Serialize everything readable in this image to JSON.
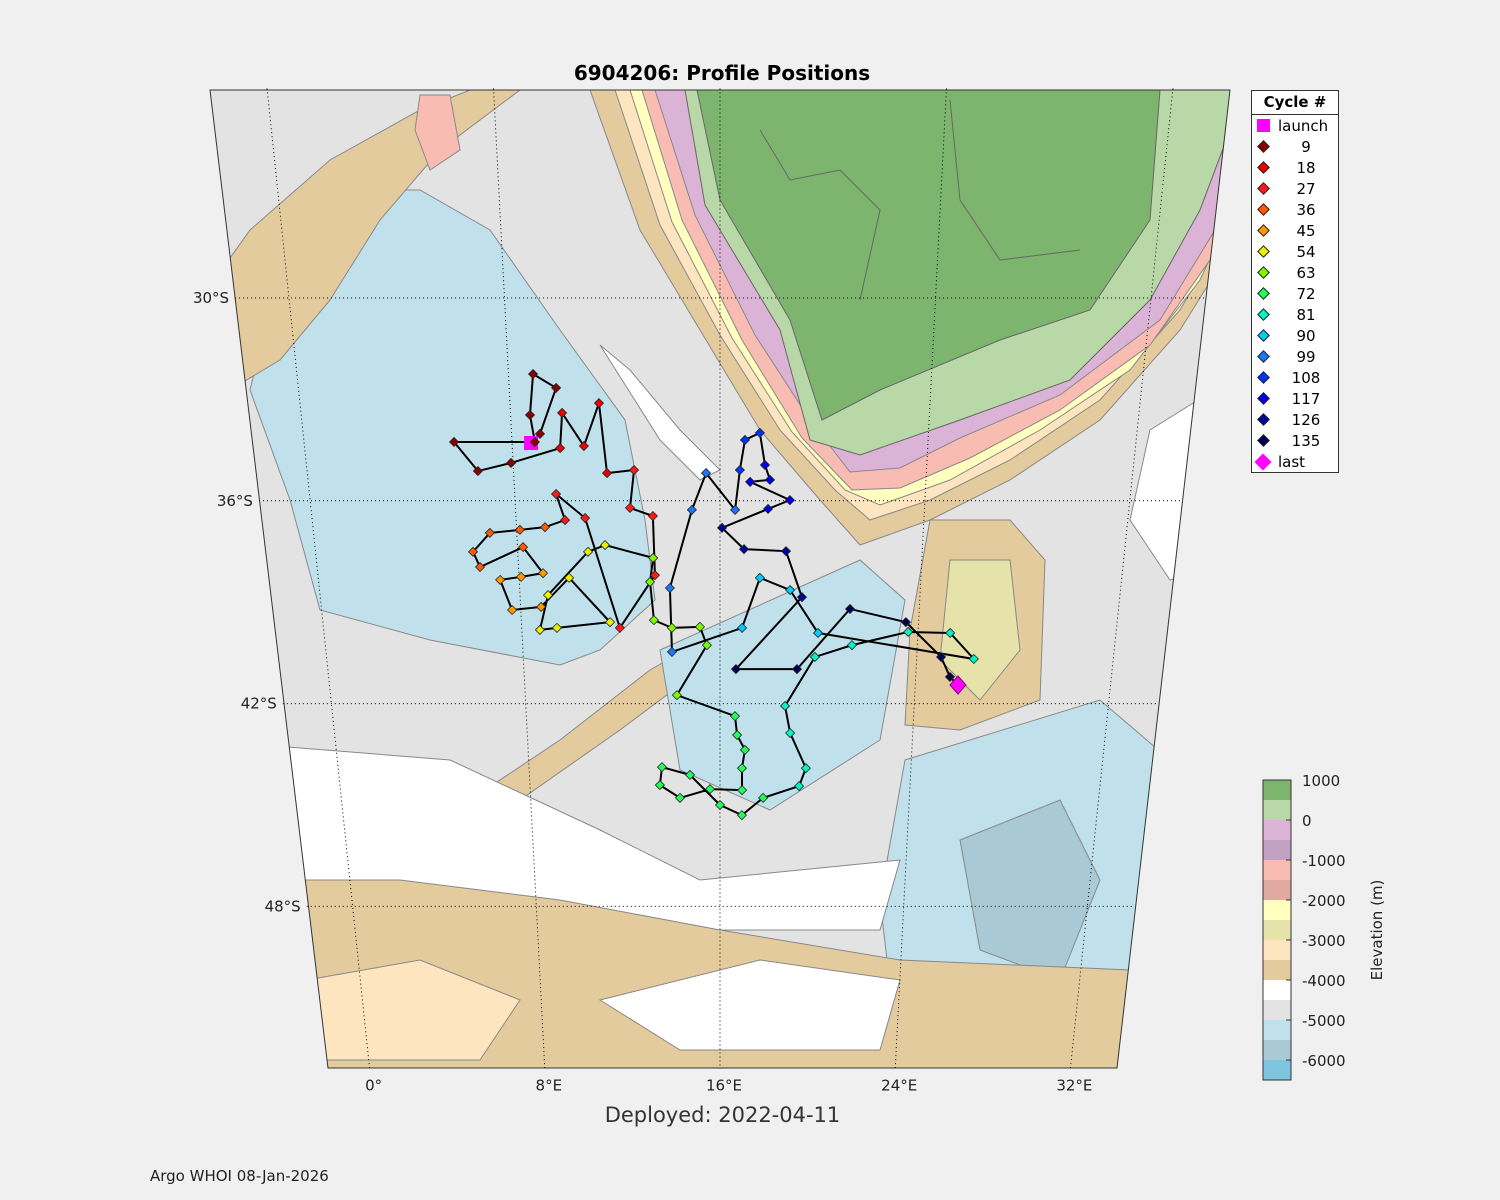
{
  "chart_data": {
    "type": "scatter",
    "title": "6904206: Profile Positions",
    "xlabel": "Deployed: 2022-04-11",
    "footer": "Argo WHOI 08-Jan-2026",
    "lon_range": [
      -2,
      34
    ],
    "lat_range": [
      -23.8,
      -52.8
    ],
    "lon_ticks": [
      {
        "value": 0,
        "label": "0°"
      },
      {
        "value": 8,
        "label": "8°E"
      },
      {
        "value": 16,
        "label": "16°E"
      },
      {
        "value": 24,
        "label": "24°E"
      },
      {
        "value": 32,
        "label": "32°E"
      }
    ],
    "lat_ticks": [
      {
        "value": -30,
        "label": "30°S"
      },
      {
        "value": -36,
        "label": "36°S"
      },
      {
        "value": -42,
        "label": "42°S"
      },
      {
        "value": -48,
        "label": "48°S"
      }
    ],
    "legend": {
      "title": "Cycle #",
      "entries": [
        {
          "label": "launch",
          "color": "#ff00ff",
          "marker": "square"
        },
        {
          "label": "9",
          "color": "#8b0000",
          "marker": "dot"
        },
        {
          "label": "18",
          "color": "#ee0000",
          "marker": "dot"
        },
        {
          "label": "27",
          "color": "#ff1a1a",
          "marker": "dot"
        },
        {
          "label": "36",
          "color": "#ff5a00",
          "marker": "dot"
        },
        {
          "label": "45",
          "color": "#ff9900",
          "marker": "dot"
        },
        {
          "label": "54",
          "color": "#e6f000",
          "marker": "dot"
        },
        {
          "label": "63",
          "color": "#7cfc00",
          "marker": "dot"
        },
        {
          "label": "72",
          "color": "#22ff55",
          "marker": "dot"
        },
        {
          "label": "81",
          "color": "#00f5c0",
          "marker": "dot"
        },
        {
          "label": "90",
          "color": "#00ccff",
          "marker": "dot"
        },
        {
          "label": "99",
          "color": "#1a75ff",
          "marker": "dot"
        },
        {
          "label": "108",
          "color": "#0033ff",
          "marker": "dot"
        },
        {
          "label": "117",
          "color": "#0000ee",
          "marker": "dot"
        },
        {
          "label": "126",
          "color": "#00009a",
          "marker": "dot"
        },
        {
          "label": "135",
          "color": "#000050",
          "marker": "dot"
        },
        {
          "label": "last",
          "color": "#ff00ff",
          "marker": "diamond"
        }
      ]
    },
    "colorbar": {
      "label": "Elevation (m)",
      "ticks": [
        "1000",
        "0",
        "-1000",
        "-2000",
        "-3000",
        "-4000",
        "-5000",
        "-6000"
      ],
      "range": [
        1000,
        -6500
      ],
      "band_colors": [
        "#7db56f",
        "#b9d8a7",
        "#dbb3d7",
        "#c3a1c2",
        "#f9bcb3",
        "#e1a9a0",
        "#ffffc0",
        "#e5e3aa",
        "#fde5c0",
        "#e3cb9d",
        "#ffffff",
        "#e3e3e3",
        "#c0e1ec",
        "#a9c9d5",
        "#80c5e0"
      ]
    },
    "track": [
      [
        8.73,
        -34.29,
        0
      ],
      [
        9.09,
        -34.02,
        1
      ],
      [
        9.78,
        -32.66,
        1
      ],
      [
        8.93,
        -32.25,
        1
      ],
      [
        8.74,
        -33.46,
        1
      ],
      [
        8.88,
        -34.26,
        1
      ],
      [
        5.77,
        -34.26,
        1
      ],
      [
        6.62,
        -35.12,
        1
      ],
      [
        7.92,
        -34.88,
        1
      ],
      [
        9.84,
        -34.44,
        2
      ],
      [
        9.97,
        -33.4,
        2
      ],
      [
        10.76,
        -34.38,
        2
      ],
      [
        11.39,
        -33.11,
        2
      ],
      [
        11.62,
        -35.18,
        2
      ],
      [
        12.67,
        -35.09,
        3
      ],
      [
        12.48,
        -36.21,
        3
      ],
      [
        13.37,
        -36.45,
        3
      ],
      [
        13.41,
        -38.2,
        3
      ],
      [
        11.96,
        -39.76,
        3
      ],
      [
        10.71,
        -36.51,
        3
      ],
      [
        9.61,
        -35.8,
        3
      ],
      [
        9.92,
        -36.57,
        3
      ],
      [
        9.12,
        -36.78,
        4
      ],
      [
        8.13,
        -36.86,
        4
      ],
      [
        6.94,
        -36.95,
        4
      ],
      [
        6.23,
        -37.51,
        4
      ],
      [
        6.47,
        -37.96,
        4
      ],
      [
        8.22,
        -37.37,
        4
      ],
      [
        8.96,
        -38.14,
        5
      ],
      [
        8.08,
        -38.25,
        5
      ],
      [
        7.24,
        -38.34,
        5
      ],
      [
        7.65,
        -39.23,
        5
      ],
      [
        8.82,
        -39.14,
        5
      ],
      [
        9.99,
        -38.28,
        6
      ],
      [
        11.57,
        -39.59,
        6
      ],
      [
        9.42,
        -39.76,
        6
      ],
      [
        8.73,
        -39.82,
        6
      ],
      [
        9.12,
        -38.79,
        6
      ],
      [
        10.78,
        -37.51,
        6
      ],
      [
        11.46,
        -37.31,
        6
      ],
      [
        13.35,
        -37.69,
        7
      ],
      [
        13.21,
        -38.4,
        7
      ],
      [
        13.34,
        -39.53,
        7
      ],
      [
        14.06,
        -39.76,
        7
      ],
      [
        15.19,
        -39.73,
        7
      ],
      [
        15.47,
        -40.27,
        7
      ],
      [
        14.23,
        -41.75,
        7
      ],
      [
        16.62,
        -42.37,
        8
      ],
      [
        16.71,
        -42.93,
        8
      ],
      [
        17.04,
        -43.37,
        8
      ],
      [
        16.92,
        -43.91,
        8
      ],
      [
        16.93,
        -44.56,
        8
      ],
      [
        15.58,
        -44.53,
        8
      ],
      [
        14.31,
        -44.79,
        8
      ],
      [
        13.47,
        -44.41,
        8
      ],
      [
        13.57,
        -43.88,
        8
      ],
      [
        14.74,
        -44.11,
        8
      ],
      [
        16.0,
        -45.0,
        8
      ],
      [
        16.93,
        -45.3,
        8
      ],
      [
        17.82,
        -44.79,
        8
      ],
      [
        19.33,
        -44.44,
        9
      ],
      [
        19.6,
        -43.91,
        9
      ],
      [
        18.91,
        -42.87,
        9
      ],
      [
        18.68,
        -42.07,
        9
      ],
      [
        19.86,
        -40.62,
        9
      ],
      [
        21.35,
        -40.27,
        9
      ],
      [
        23.6,
        -39.88,
        9
      ],
      [
        25.3,
        -39.91,
        9
      ],
      [
        26.33,
        -40.68,
        9
      ],
      [
        19.96,
        -39.91,
        10
      ],
      [
        18.8,
        -38.64,
        10
      ],
      [
        17.59,
        -38.28,
        10
      ],
      [
        16.89,
        -39.76,
        10
      ],
      [
        14.05,
        -40.47,
        11
      ],
      [
        14.0,
        -38.58,
        11
      ],
      [
        14.9,
        -36.27,
        11
      ],
      [
        15.46,
        -35.18,
        11
      ],
      [
        16.59,
        -36.27,
        11
      ],
      [
        16.77,
        -35.09,
        12
      ],
      [
        16.96,
        -34.2,
        12
      ],
      [
        17.53,
        -33.99,
        12
      ],
      [
        17.74,
        -34.94,
        13
      ],
      [
        17.94,
        -35.38,
        13
      ],
      [
        17.17,
        -35.44,
        13
      ],
      [
        18.73,
        -35.98,
        13
      ],
      [
        17.88,
        -36.24,
        13
      ],
      [
        16.08,
        -36.8,
        14
      ],
      [
        16.95,
        -37.43,
        14
      ],
      [
        18.61,
        -37.49,
        14
      ],
      [
        19.28,
        -38.85,
        14
      ],
      [
        16.65,
        -40.98,
        15
      ],
      [
        19.14,
        -40.98,
        15
      ],
      [
        21.22,
        -39.2,
        15
      ],
      [
        23.49,
        -39.59,
        15
      ],
      [
        24.99,
        -40.62,
        15
      ],
      [
        25.4,
        -41.21,
        15
      ],
      [
        25.75,
        -41.45,
        16
      ]
    ]
  }
}
